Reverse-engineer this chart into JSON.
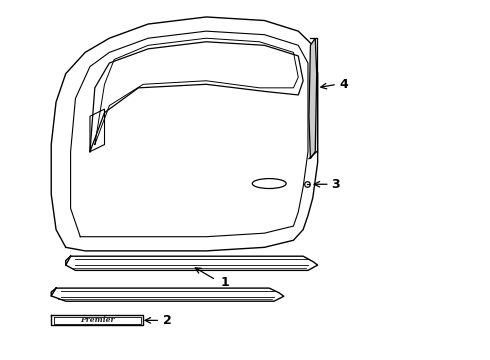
{
  "bg_color": "#ffffff",
  "line_color": "#000000",
  "fig_width": 4.9,
  "fig_height": 3.6,
  "dpi": 100,
  "label_fontsize": 9,
  "door_outer": {
    "x": [
      0.12,
      0.1,
      0.09,
      0.1,
      0.12,
      0.14,
      0.17,
      0.22,
      0.3,
      0.4,
      0.52,
      0.6,
      0.64,
      0.64,
      0.63,
      0.62,
      0.62,
      0.6,
      0.55,
      0.4,
      0.22,
      0.15,
      0.12
    ],
    "y": [
      0.3,
      0.38,
      0.52,
      0.68,
      0.78,
      0.84,
      0.89,
      0.93,
      0.96,
      0.97,
      0.96,
      0.93,
      0.9,
      0.87,
      0.58,
      0.5,
      0.42,
      0.34,
      0.3,
      0.28,
      0.28,
      0.29,
      0.3
    ]
  },
  "door_inner": {
    "x": [
      0.16,
      0.18,
      0.22,
      0.3,
      0.4,
      0.52,
      0.6,
      0.62,
      0.62,
      0.6,
      0.55,
      0.4,
      0.22,
      0.17,
      0.16
    ],
    "y": [
      0.34,
      0.38,
      0.42,
      0.45,
      0.46,
      0.45,
      0.43,
      0.42,
      0.88,
      0.91,
      0.94,
      0.95,
      0.92,
      0.88,
      0.34
    ]
  }
}
